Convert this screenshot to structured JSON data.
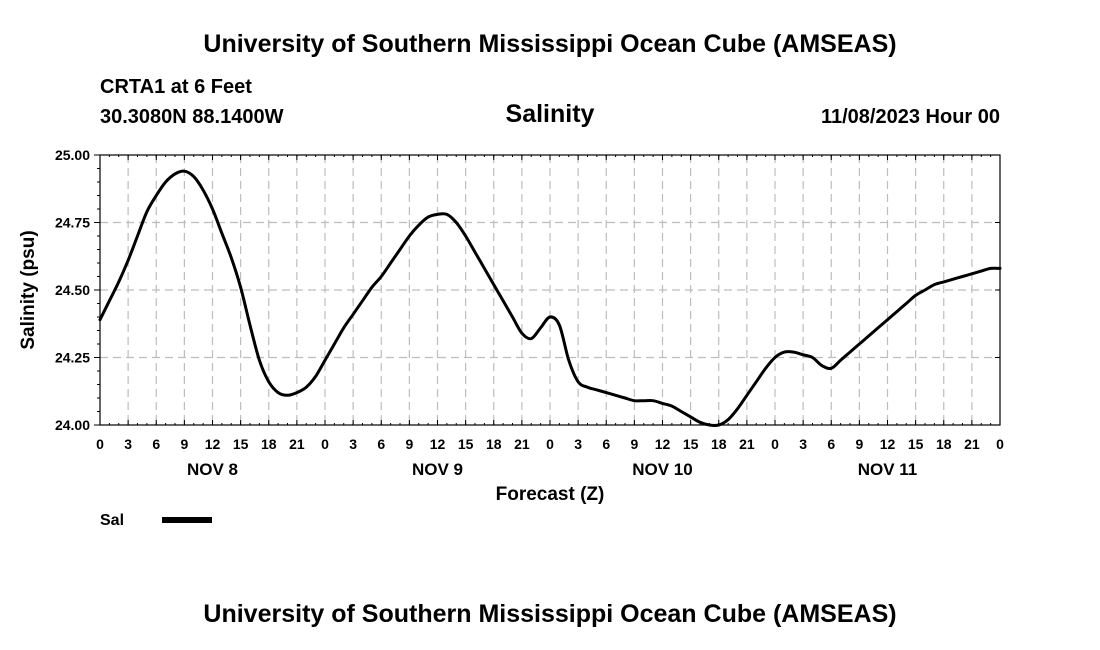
{
  "header": {
    "title": "University of Southern Mississippi Ocean Cube (AMSEAS)",
    "station": "CRTA1 at 6 Feet",
    "coordinates": "30.3080N  88.1400W",
    "datetime": "11/08/2023 Hour 00"
  },
  "footer": {
    "title": "University of Southern Mississippi Ocean Cube (AMSEAS)"
  },
  "chart_data": {
    "type": "line",
    "title": "Salinity",
    "xlabel": "Forecast (Z)",
    "ylabel": "Salinity (psu)",
    "ylim": [
      24.0,
      25.0
    ],
    "yticks": [
      "24.00",
      "24.25",
      "24.50",
      "24.75",
      "25.00"
    ],
    "xlim": [
      0,
      96
    ],
    "xtick_step_hours": 3,
    "xtick_labels": [
      "0",
      "3",
      "6",
      "9",
      "12",
      "15",
      "18",
      "21",
      "0",
      "3",
      "6",
      "9",
      "12",
      "15",
      "18",
      "21",
      "0",
      "3",
      "6",
      "9",
      "12",
      "15",
      "18",
      "21",
      "0",
      "3",
      "6",
      "9",
      "12",
      "15",
      "18",
      "21",
      "0"
    ],
    "day_labels": [
      {
        "label": "NOV 8",
        "hour": 12
      },
      {
        "label": "NOV 9",
        "hour": 36
      },
      {
        "label": "NOV 10",
        "hour": 60
      },
      {
        "label": "NOV 11",
        "hour": 84
      }
    ],
    "grid": true,
    "legend": {
      "position": "bottom-left",
      "entries": [
        {
          "name": "Sal",
          "color": "#000000"
        }
      ]
    },
    "series": [
      {
        "name": "Sal",
        "color": "#000000",
        "x": [
          0,
          1,
          2,
          3,
          4,
          5,
          6,
          7,
          8,
          9,
          10,
          11,
          12,
          13,
          14,
          15,
          16,
          17,
          18,
          19,
          20,
          21,
          22,
          23,
          24,
          25,
          26,
          27,
          28,
          29,
          30,
          31,
          32,
          33,
          34,
          35,
          36,
          37,
          38,
          39,
          40,
          41,
          42,
          43,
          44,
          45,
          46,
          47,
          48,
          49,
          50,
          51,
          52,
          53,
          54,
          55,
          56,
          57,
          58,
          59,
          60,
          61,
          62,
          63,
          64,
          65,
          66,
          67,
          68,
          69,
          70,
          71,
          72,
          73,
          74,
          75,
          76,
          77,
          78,
          79,
          80,
          81,
          82,
          83,
          84,
          85,
          86,
          87,
          88,
          89,
          90,
          91,
          92,
          93,
          94,
          95,
          96
        ],
        "values": [
          24.39,
          24.46,
          24.53,
          24.61,
          24.7,
          24.79,
          24.85,
          24.9,
          24.93,
          24.94,
          24.92,
          24.87,
          24.8,
          24.71,
          24.62,
          24.51,
          24.37,
          24.24,
          24.16,
          24.12,
          24.11,
          24.12,
          24.14,
          24.18,
          24.24,
          24.3,
          24.36,
          24.41,
          24.46,
          24.51,
          24.55,
          24.6,
          24.65,
          24.7,
          24.74,
          24.77,
          24.78,
          24.78,
          24.75,
          24.7,
          24.64,
          24.58,
          24.52,
          24.46,
          24.4,
          24.34,
          24.32,
          24.36,
          24.4,
          24.37,
          24.24,
          24.16,
          24.14,
          24.13,
          24.12,
          24.11,
          24.1,
          24.09,
          24.09,
          24.09,
          24.08,
          24.07,
          24.05,
          24.03,
          24.01,
          24.0,
          24.0,
          24.02,
          24.06,
          24.11,
          24.16,
          24.21,
          24.25,
          24.27,
          24.27,
          24.26,
          24.25,
          24.22,
          24.21,
          24.24,
          24.27,
          24.3,
          24.33,
          24.36,
          24.39,
          24.42,
          24.45,
          24.48,
          24.5,
          24.52,
          24.53,
          24.54,
          24.55,
          24.56,
          24.57,
          24.58,
          24.58
        ]
      }
    ]
  }
}
